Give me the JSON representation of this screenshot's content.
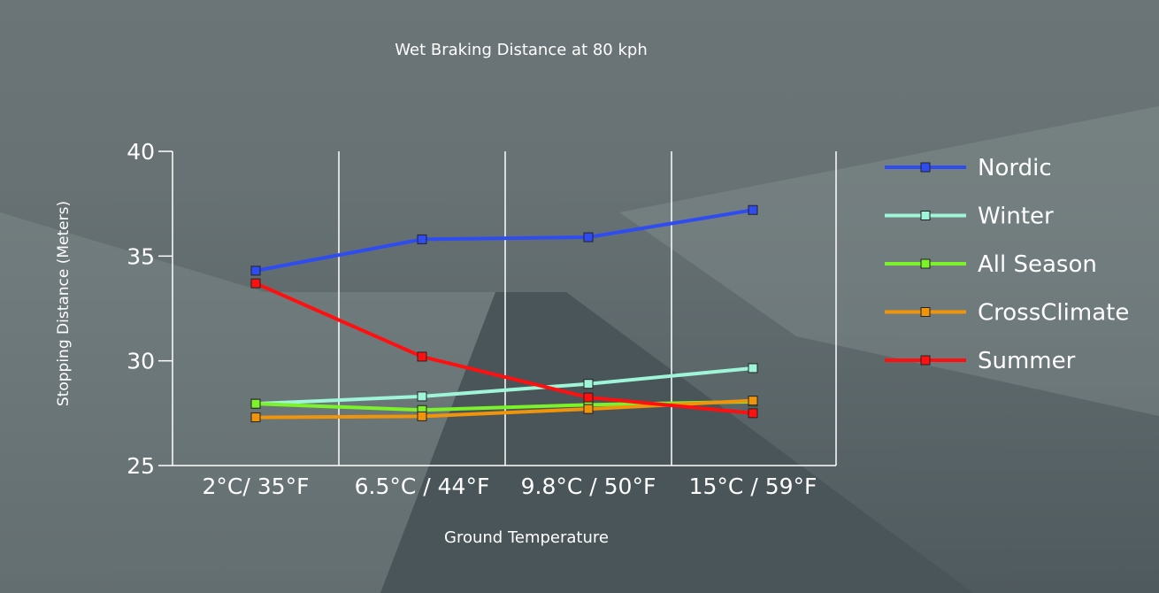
{
  "chart_data": {
    "type": "line",
    "title": "Wet Braking Distance at 80 kph",
    "xlabel": "Ground Temperature",
    "ylabel": "Stopping Distance (Meters)",
    "categories": [
      "2°C/ 35°F",
      "6.5°C / 44°F",
      "9.8°C / 50°F",
      "15°C / 59°F"
    ],
    "ylim": [
      25,
      40
    ],
    "yticks": [
      25,
      30,
      35,
      40
    ],
    "grid": "vertical",
    "legend_position": "right",
    "series": [
      {
        "name": "Nordic",
        "color": "#2f4cf0",
        "values": [
          34.3,
          35.8,
          35.9,
          37.2
        ]
      },
      {
        "name": "Winter",
        "color": "#9ff5d8",
        "values": [
          27.95,
          28.3,
          28.9,
          29.65
        ]
      },
      {
        "name": "All Season",
        "color": "#7cf22a",
        "values": [
          27.95,
          27.65,
          27.9,
          28.05
        ]
      },
      {
        "name": "CrossClimate",
        "color": "#f0940a",
        "values": [
          27.3,
          27.35,
          27.7,
          28.1
        ]
      },
      {
        "name": "Summer",
        "color": "#ff1010",
        "values": [
          33.7,
          30.2,
          28.25,
          27.5
        ]
      }
    ]
  }
}
